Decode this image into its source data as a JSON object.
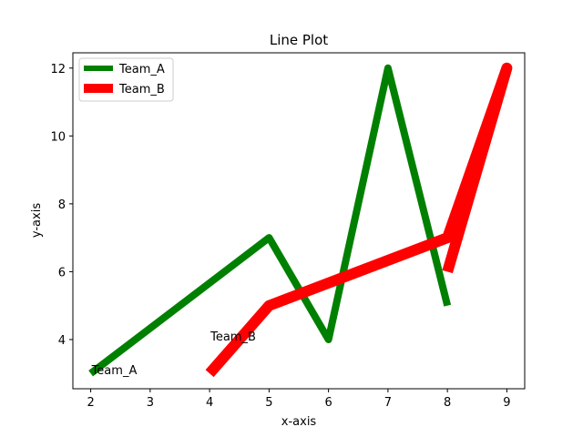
{
  "chart_data": {
    "type": "line",
    "title": "Line Plot",
    "xlabel": "x-axis",
    "ylabel": "y-axis",
    "xlim": [
      1.7,
      9.3
    ],
    "ylim": [
      2.55,
      12.45
    ],
    "xticks": [
      2,
      3,
      4,
      5,
      6,
      7,
      8,
      9
    ],
    "yticks": [
      4,
      6,
      8,
      10,
      12
    ],
    "grid": false,
    "legend_position": "top-left",
    "series": [
      {
        "name": "Team_A",
        "color": "#008000",
        "x": [
          2,
          5,
          6,
          7,
          8
        ],
        "y": [
          3,
          7,
          4,
          12,
          5
        ]
      },
      {
        "name": "Team_B",
        "color": "#ff0000",
        "x": [
          4,
          5,
          8,
          9,
          8
        ],
        "y": [
          3,
          5,
          7,
          12,
          6
        ]
      }
    ],
    "annotations": [
      {
        "text": "Team_A",
        "x": 2,
        "y": 3
      },
      {
        "text": "Team_B",
        "x": 4,
        "y": 4
      }
    ]
  }
}
